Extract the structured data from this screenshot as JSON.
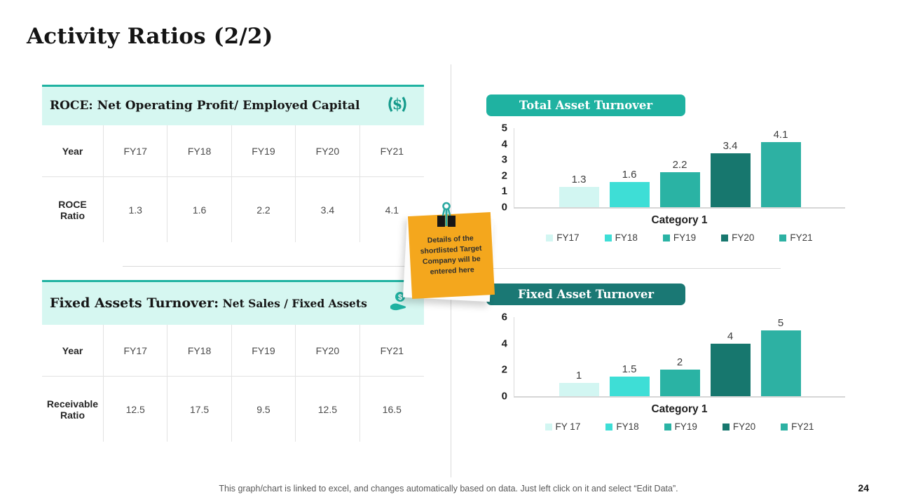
{
  "slide": {
    "title": "Activity Ratios (2/2)",
    "page_number": "24",
    "footer_note": "This graph/chart is linked to excel, and changes automatically based on data. Just left click on it and select “Edit Data”."
  },
  "left_panel": {
    "tables": [
      {
        "header_main": "ROCE:",
        "header_sub": " Net Operating Profit/ Employed Capital",
        "icon": "money-cycle-icon",
        "row_labels": [
          "Year",
          "ROCE Ratio"
        ],
        "years": [
          "FY17",
          "FY18",
          "FY19",
          "FY20",
          "FY21"
        ],
        "values": [
          "1.3",
          "1.6",
          "2.2",
          "3.4",
          "4.1"
        ]
      },
      {
        "header_main": "Fixed Assets Turnover:",
        "header_sub": " Net Sales / Fixed Assets",
        "icon": "hand-coin-icon",
        "row_labels": [
          "Year",
          "Receivable Ratio"
        ],
        "years": [
          "FY17",
          "FY18",
          "FY19",
          "FY20",
          "FY21"
        ],
        "values": [
          "12.5",
          "17.5",
          "9.5",
          "12.5",
          "16.5"
        ]
      }
    ]
  },
  "sticky_note": {
    "text": "Details of the shortlisted Target Company will be entered here"
  },
  "chart_data": [
    {
      "type": "bar",
      "title": "Total Asset Turnover",
      "title_bg": "#1FB2A1",
      "categories": [
        "FY17",
        "FY18",
        "FY19",
        "FY20",
        "FY21"
      ],
      "values": [
        1.3,
        1.6,
        2.2,
        3.4,
        4.1
      ],
      "data_labels": [
        "1.3",
        "1.6",
        "2.2",
        "3.4",
        "4.1"
      ],
      "xlabel": "Category 1",
      "ylabel": "",
      "ylim": [
        0,
        5
      ],
      "yticks": [
        0,
        1,
        2,
        3,
        4,
        5
      ],
      "grid": false,
      "legend": [
        "FY17",
        "FY18",
        "FY19",
        "FY20",
        "FY21"
      ],
      "legend_position": "bottom",
      "bar_colors": [
        "#D2F6F2",
        "#3EDED6",
        "#2AB3A4",
        "#17776E",
        "#2DB1A3"
      ]
    },
    {
      "type": "bar",
      "title": "Fixed Asset Turnover",
      "title_bg": "#1A7874",
      "categories": [
        "FY 17",
        "FY18",
        "FY19",
        "FY20",
        "FY21"
      ],
      "values": [
        1,
        1.5,
        2,
        4,
        5
      ],
      "data_labels": [
        "1",
        "1.5",
        "2",
        "4",
        "5"
      ],
      "xlabel": "Category 1",
      "ylabel": "",
      "ylim": [
        0,
        6
      ],
      "yticks": [
        0,
        2,
        4,
        6
      ],
      "grid": false,
      "legend": [
        "FY 17",
        "FY18",
        "FY19",
        "FY20",
        "FY21"
      ],
      "legend_position": "bottom",
      "bar_colors": [
        "#D2F6F2",
        "#3EDED6",
        "#2AB3A4",
        "#17776E",
        "#2DB1A3"
      ]
    }
  ]
}
